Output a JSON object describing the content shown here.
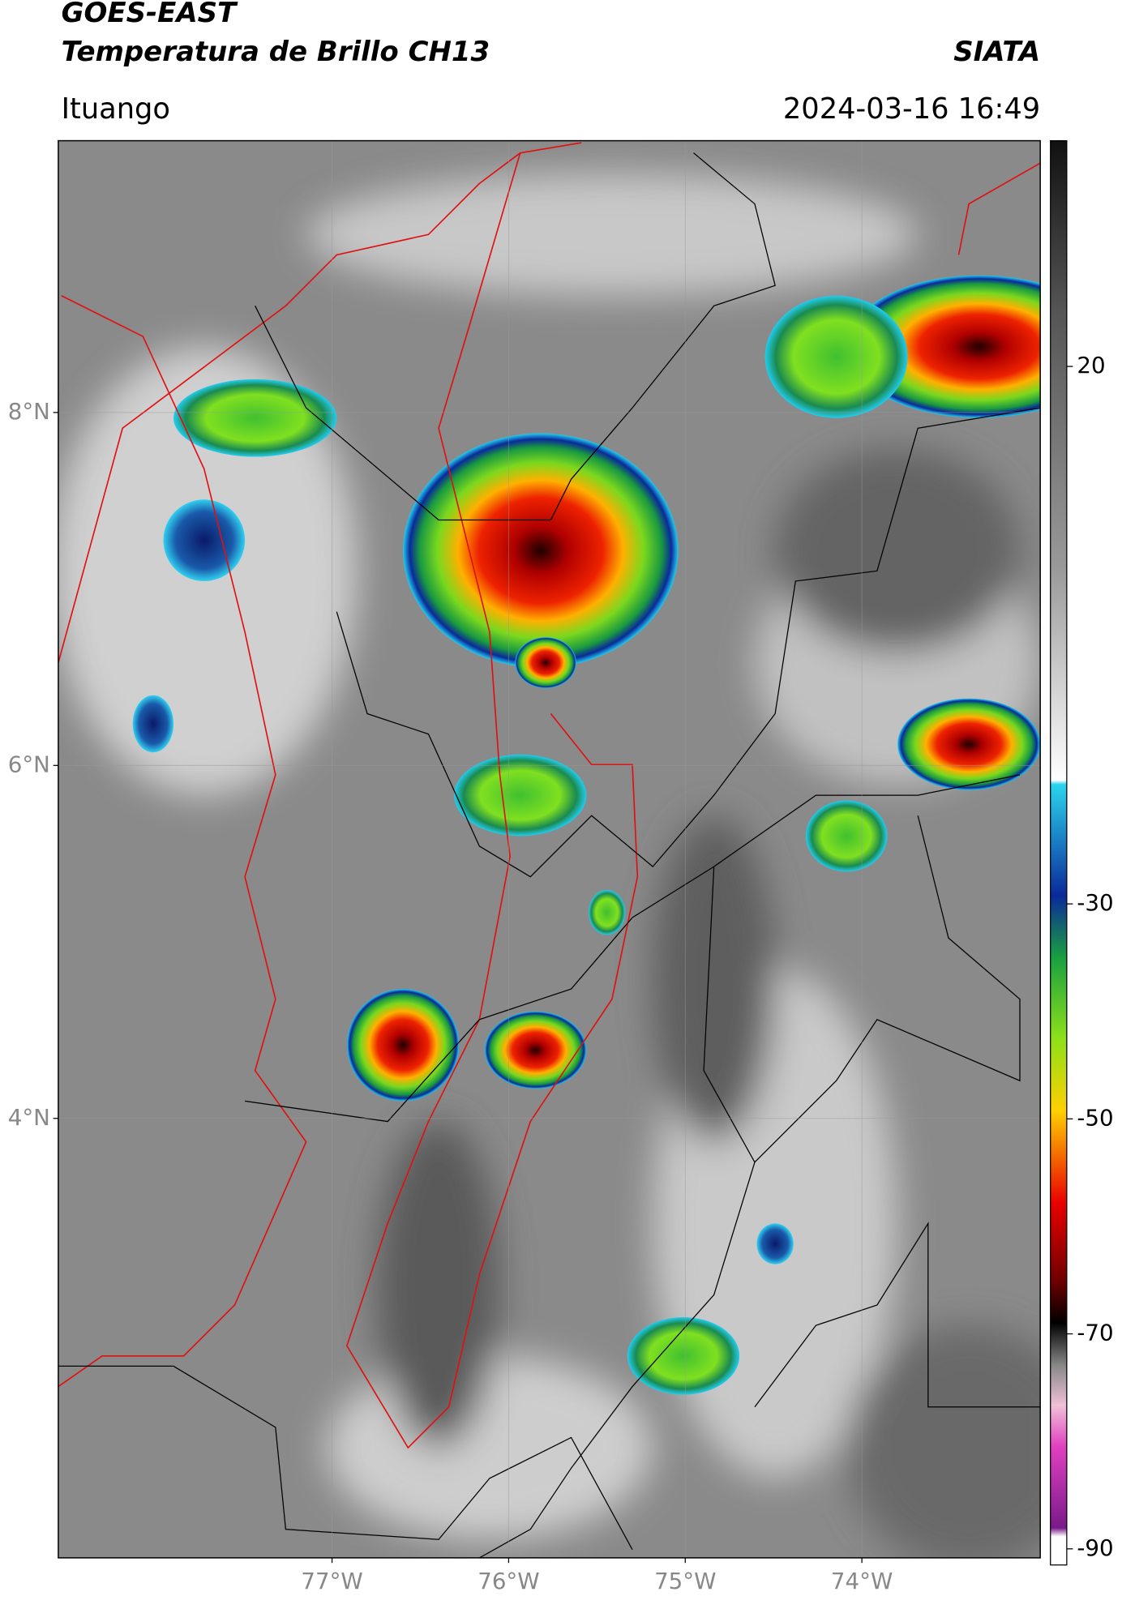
{
  "header": {
    "title": "GOES-EAST",
    "subtitle": "Temperatura de Brillo CH13",
    "brand": "SIATA",
    "location": "Ituango",
    "timestamp": "2024-03-16 16:49"
  },
  "map": {
    "lat_range": [
      1.51,
      9.54
    ],
    "lon_range": [
      -78.55,
      -72.99
    ],
    "lat_ticks": [
      {
        "value": 8,
        "label": "8°N"
      },
      {
        "value": 6,
        "label": "6°N"
      },
      {
        "value": 4,
        "label": "4°N"
      }
    ],
    "lon_ticks": [
      {
        "value": -77,
        "label": "77°W"
      },
      {
        "value": -76,
        "label": "76°W"
      },
      {
        "value": -75,
        "label": "75°W"
      },
      {
        "value": -74,
        "label": "74°W"
      }
    ]
  },
  "colorbar": {
    "range": [
      -91.5,
      41
    ],
    "ticks": [
      20,
      -30,
      -50,
      -70,
      -90
    ]
  }
}
